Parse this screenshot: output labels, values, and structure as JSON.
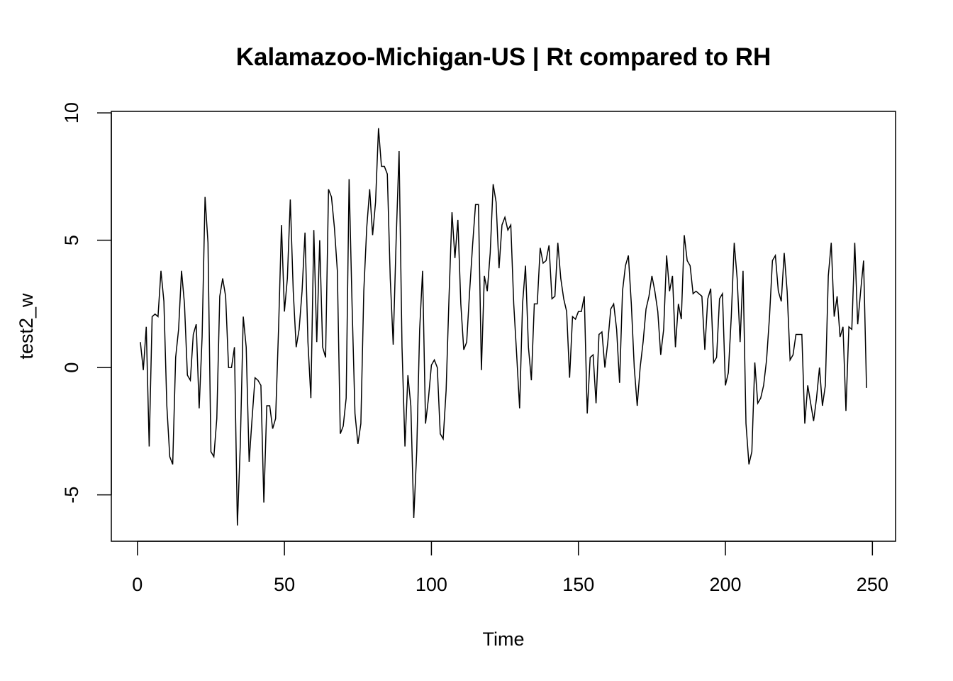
{
  "chart_data": {
    "type": "line",
    "title": "Kalamazoo-Michigan-US | Rt compared to RH",
    "xlabel": "Time",
    "ylabel": "test2_w",
    "x": [
      1,
      2,
      3,
      4,
      5,
      6,
      7,
      8,
      9,
      10,
      11,
      12,
      13,
      14,
      15,
      16,
      17,
      18,
      19,
      20,
      21,
      22,
      23,
      24,
      25,
      26,
      27,
      28,
      29,
      30,
      31,
      32,
      33,
      34,
      35,
      36,
      37,
      38,
      39,
      40,
      41,
      42,
      43,
      44,
      45,
      46,
      47,
      48,
      49,
      50,
      51,
      52,
      53,
      54,
      55,
      56,
      57,
      58,
      59,
      60,
      61,
      62,
      63,
      64,
      65,
      66,
      67,
      68,
      69,
      70,
      71,
      72,
      73,
      74,
      75,
      76,
      77,
      78,
      79,
      80,
      81,
      82,
      83,
      84,
      85,
      86,
      87,
      88,
      89,
      90,
      91,
      92,
      93,
      94,
      95,
      96,
      97,
      98,
      99,
      100,
      101,
      102,
      103,
      104,
      105,
      106,
      107,
      108,
      109,
      110,
      111,
      112,
      113,
      114,
      115,
      116,
      117,
      118,
      119,
      120,
      121,
      122,
      123,
      124,
      125,
      126,
      127,
      128,
      129,
      130,
      131,
      132,
      133,
      134,
      135,
      136,
      137,
      138,
      139,
      140,
      141,
      142,
      143,
      144,
      145,
      146,
      147,
      148,
      149,
      150,
      151,
      152,
      153,
      154,
      155,
      156,
      157,
      158,
      159,
      160,
      161,
      162,
      163,
      164,
      165,
      166,
      167,
      168,
      169,
      170,
      171,
      172,
      173,
      174,
      175,
      176,
      177,
      178,
      179,
      180,
      181,
      182,
      183,
      184,
      185,
      186,
      187,
      188,
      189,
      190,
      191,
      192,
      193,
      194,
      195,
      196,
      197,
      198,
      199,
      200,
      201,
      202,
      203,
      204,
      205,
      206,
      207,
      208,
      209,
      210,
      211,
      212,
      213,
      214,
      215,
      216,
      217,
      218,
      219,
      220,
      221,
      222,
      223,
      224,
      225,
      226,
      227,
      228,
      229,
      230,
      231,
      232,
      233,
      234,
      235,
      236,
      237,
      238,
      239,
      240,
      241,
      242,
      243,
      244,
      245,
      246,
      247,
      248
    ],
    "series": [
      {
        "name": "test2_w",
        "color": "#000000",
        "values": [
          1.0,
          -0.1,
          1.6,
          -3.1,
          2.0,
          2.1,
          2.0,
          3.8,
          2.6,
          -1.5,
          -3.5,
          -3.8,
          0.4,
          1.5,
          3.8,
          2.5,
          -0.3,
          -0.5,
          1.3,
          1.7,
          -1.6,
          1.2,
          6.7,
          4.9,
          -3.3,
          -3.5,
          -2.0,
          2.8,
          3.5,
          2.8,
          0.0,
          0.0,
          0.8,
          -6.2,
          -3.0,
          2.0,
          0.8,
          -3.7,
          -2.0,
          -0.4,
          -0.5,
          -0.7,
          -5.3,
          -1.5,
          -1.5,
          -2.4,
          -2.0,
          1.5,
          5.6,
          2.2,
          3.5,
          6.6,
          3.0,
          0.8,
          1.5,
          3.0,
          5.3,
          1.0,
          -1.2,
          5.4,
          1.0,
          5.0,
          0.8,
          0.4,
          7.0,
          6.7,
          5.5,
          3.8,
          -2.6,
          -2.3,
          -1.2,
          7.4,
          2.5,
          -1.8,
          -3.0,
          -2.2,
          3.0,
          5.5,
          7.0,
          5.2,
          6.5,
          9.4,
          7.9,
          7.9,
          7.6,
          3.5,
          0.9,
          5.0,
          8.5,
          0.8,
          -3.1,
          -0.3,
          -1.5,
          -5.9,
          -3.3,
          1.5,
          3.8,
          -2.2,
          -1.2,
          0.1,
          0.3,
          0.0,
          -2.6,
          -2.8,
          -0.9,
          2.8,
          6.1,
          4.3,
          5.8,
          2.5,
          0.7,
          1.0,
          3.0,
          4.8,
          6.4,
          6.4,
          -0.1,
          3.6,
          3.0,
          4.5,
          7.2,
          6.5,
          3.9,
          5.6,
          5.9,
          5.4,
          5.6,
          2.5,
          0.5,
          -1.6,
          2.5,
          4.0,
          0.8,
          -0.5,
          2.5,
          2.5,
          4.7,
          4.1,
          4.2,
          4.8,
          2.7,
          2.8,
          4.9,
          3.5,
          2.7,
          2.2,
          -0.4,
          2.0,
          1.9,
          2.2,
          2.2,
          2.8,
          -1.8,
          0.4,
          0.5,
          -1.4,
          1.3,
          1.4,
          0.0,
          1.0,
          2.3,
          2.5,
          1.5,
          -0.6,
          3.0,
          4.0,
          4.4,
          2.5,
          0.0,
          -1.5,
          0.0,
          1.0,
          2.3,
          2.8,
          3.6,
          3.0,
          2.2,
          0.5,
          1.5,
          4.4,
          3.0,
          3.6,
          0.8,
          2.5,
          1.9,
          5.2,
          4.2,
          4.0,
          2.9,
          3.0,
          2.9,
          2.8,
          0.7,
          2.7,
          3.1,
          0.2,
          0.4,
          2.7,
          2.9,
          -0.7,
          -0.2,
          2.0,
          4.9,
          3.5,
          1.0,
          3.8,
          -2.2,
          -3.8,
          -3.3,
          0.2,
          -1.4,
          -1.2,
          -0.7,
          0.3,
          2.0,
          4.2,
          4.4,
          3.0,
          2.6,
          4.5,
          3.0,
          0.3,
          0.5,
          1.3,
          1.3,
          1.3,
          -2.2,
          -0.7,
          -1.4,
          -2.1,
          -1.2,
          0.0,
          -1.5,
          -0.7,
          3.6,
          4.9,
          2.0,
          2.8,
          1.2,
          1.6,
          -1.7,
          1.6,
          1.5,
          4.9,
          1.7,
          3.0,
          4.2,
          -0.8
        ]
      }
    ],
    "xlim": [
      -8.88,
      257.88
    ],
    "xticks": [
      0,
      50,
      100,
      150,
      200,
      250
    ],
    "ylim": [
      -6.82,
      10.06
    ],
    "yticks": [
      -5,
      0,
      5,
      10
    ],
    "grid": false
  }
}
